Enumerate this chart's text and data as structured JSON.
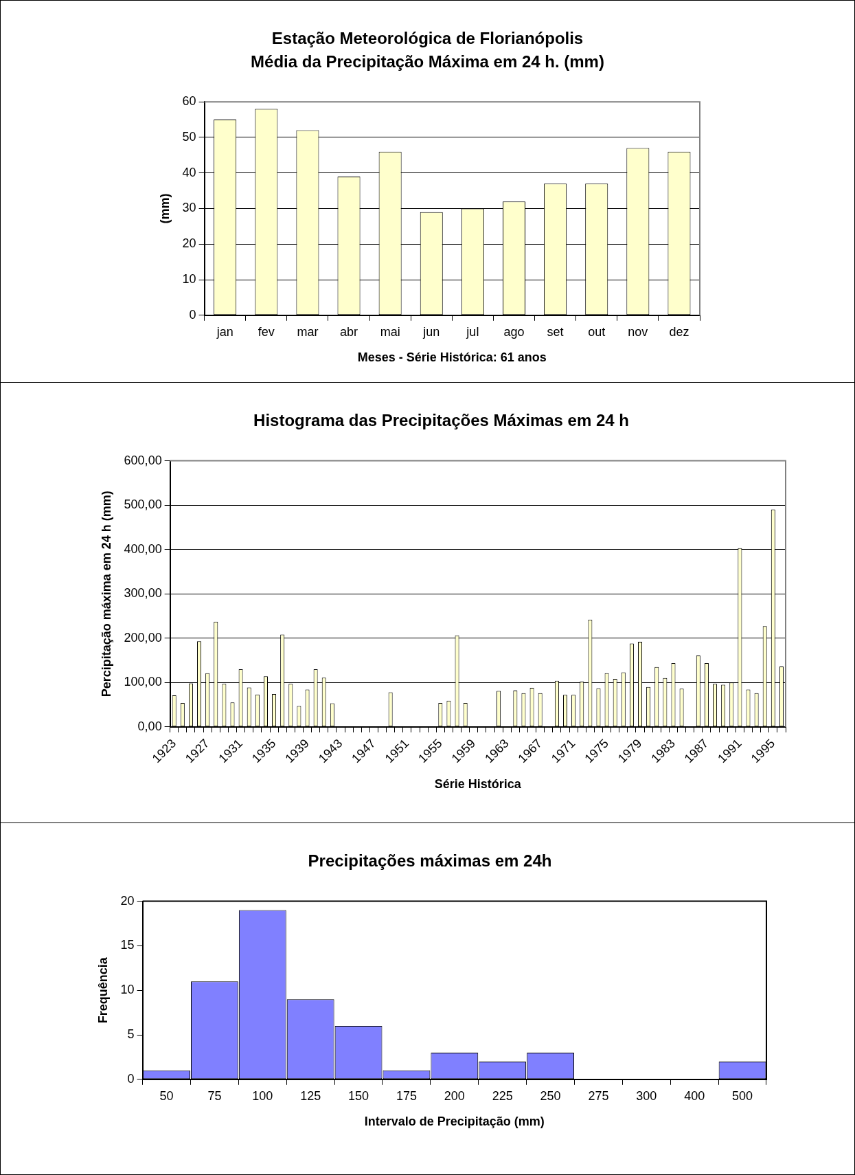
{
  "chart_data": [
    {
      "type": "bar",
      "title": "Estação Meteorológica de Florianópolis",
      "subtitle": "Média da Precipitação Máxima em 24 h. (mm)",
      "xlabel": "Meses - Série Histórica: 61 anos",
      "ylabel": "(mm)",
      "categories": [
        "jan",
        "fev",
        "mar",
        "abr",
        "mai",
        "jun",
        "jul",
        "ago",
        "set",
        "out",
        "nov",
        "dez"
      ],
      "values": [
        55,
        58,
        52,
        39,
        46,
        29,
        30,
        32,
        37,
        37,
        47,
        46
      ],
      "color": "#ffffcc",
      "ylim": [
        0,
        60
      ],
      "yticks": [
        0,
        10,
        20,
        30,
        40,
        50,
        60
      ],
      "grid": "y",
      "legend": false
    },
    {
      "type": "bar",
      "title": "Histograma das Precipitações Máximas em 24 h",
      "xlabel": "Série Histórica",
      "ylabel": "Percipitação máxima em 24 h (mm)",
      "categories": [
        "1923",
        null,
        null,
        null,
        "1927",
        null,
        null,
        null,
        "1931",
        null,
        null,
        null,
        "1935",
        null,
        null,
        null,
        "1939",
        null,
        null,
        null,
        "1943",
        null,
        null,
        null,
        "1947",
        null,
        null,
        null,
        "1951",
        null,
        null,
        null,
        "1955",
        null,
        null,
        null,
        "1959",
        null,
        null,
        null,
        "1963",
        null,
        null,
        null,
        "1967",
        null,
        null,
        null,
        "1971",
        null,
        null,
        null,
        "1975",
        null,
        null,
        null,
        "1979",
        null,
        null,
        null,
        "1983",
        null,
        null,
        null,
        "1987",
        null,
        null,
        null,
        "1991",
        null,
        null,
        null,
        "1995",
        null
      ],
      "values": [
        71,
        54,
        98,
        193,
        121,
        237,
        97,
        55,
        130,
        89,
        73,
        114,
        74,
        208,
        97,
        47,
        84,
        130,
        111,
        53,
        null,
        null,
        null,
        null,
        null,
        null,
        78,
        null,
        null,
        null,
        null,
        null,
        54,
        59,
        206,
        54,
        null,
        null,
        null,
        81,
        null,
        82,
        76,
        88,
        76,
        null,
        104,
        72,
        72,
        102,
        242,
        87,
        121,
        108,
        123,
        188,
        192,
        90,
        135,
        110,
        144,
        86,
        null,
        161,
        144,
        97,
        95,
        100,
        403,
        84,
        76,
        227,
        490,
        136
      ],
      "color": "#ffffcc",
      "ylim": [
        0,
        600
      ],
      "yticks": [
        {
          "value": 0,
          "label": "0,00"
        },
        {
          "value": 100,
          "label": "100,00"
        },
        {
          "value": 200,
          "label": "200,00"
        },
        {
          "value": 300,
          "label": "300,00"
        },
        {
          "value": 400,
          "label": "400,00"
        },
        {
          "value": 500,
          "label": "500,00"
        },
        {
          "value": 600,
          "label": "600,00"
        }
      ],
      "grid": "y",
      "legend": false
    },
    {
      "type": "bar",
      "title": "Precipitações máximas em 24h",
      "xlabel": "Intervalo de Precipitação (mm)",
      "ylabel": "Frequência",
      "categories": [
        "50",
        "75",
        "100",
        "125",
        "150",
        "175",
        "200",
        "225",
        "250",
        "275",
        "300",
        "400",
        "500"
      ],
      "values": [
        1,
        11,
        19,
        9,
        6,
        1,
        3,
        2,
        3,
        0,
        0,
        0,
        2
      ],
      "color": "#8080ff",
      "ylim": [
        0,
        20
      ],
      "yticks": [
        0,
        5,
        10,
        15,
        20
      ],
      "grid": false,
      "legend": false
    }
  ]
}
